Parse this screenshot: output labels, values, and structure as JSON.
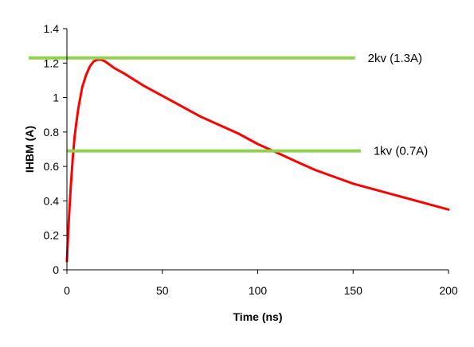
{
  "chart_data": {
    "type": "line",
    "xlabel": "Time (ns)",
    "ylabel": "IHBM (A)",
    "xlim": [
      0,
      200
    ],
    "ylim": [
      0,
      1.4
    ],
    "x_ticks": [
      0,
      50,
      100,
      150,
      200
    ],
    "y_ticks": [
      0,
      0.2,
      0.4,
      0.6,
      0.8,
      1,
      1.2,
      1.4
    ],
    "grid": false,
    "legend": "none",
    "series": [
      {
        "color": "#ff0000",
        "x": [
          0,
          0.5,
          1,
          2,
          3,
          4,
          5,
          6,
          8,
          10,
          12,
          14,
          16,
          18,
          20,
          25,
          30,
          40,
          50,
          60,
          70,
          80,
          90,
          100,
          110,
          120,
          130,
          140,
          150,
          160,
          170,
          180,
          190,
          200
        ],
        "y": [
          0.05,
          0.17,
          0.29,
          0.48,
          0.64,
          0.77,
          0.86,
          0.94,
          1.06,
          1.13,
          1.18,
          1.21,
          1.22,
          1.22,
          1.21,
          1.17,
          1.14,
          1.07,
          1.01,
          0.95,
          0.89,
          0.84,
          0.79,
          0.73,
          0.68,
          0.63,
          0.58,
          0.54,
          0.5,
          0.47,
          0.44,
          0.41,
          0.38,
          0.35
        ]
      }
    ],
    "annotations": [
      {
        "text": "2kv (1.3A)",
        "y": 1.23,
        "x_start": -20,
        "x_end": 151,
        "color": "#92d050"
      },
      {
        "text": "1kv (0.7A)",
        "y": 0.69,
        "x_start": 0,
        "x_end": 154,
        "color": "#92d050"
      }
    ]
  }
}
